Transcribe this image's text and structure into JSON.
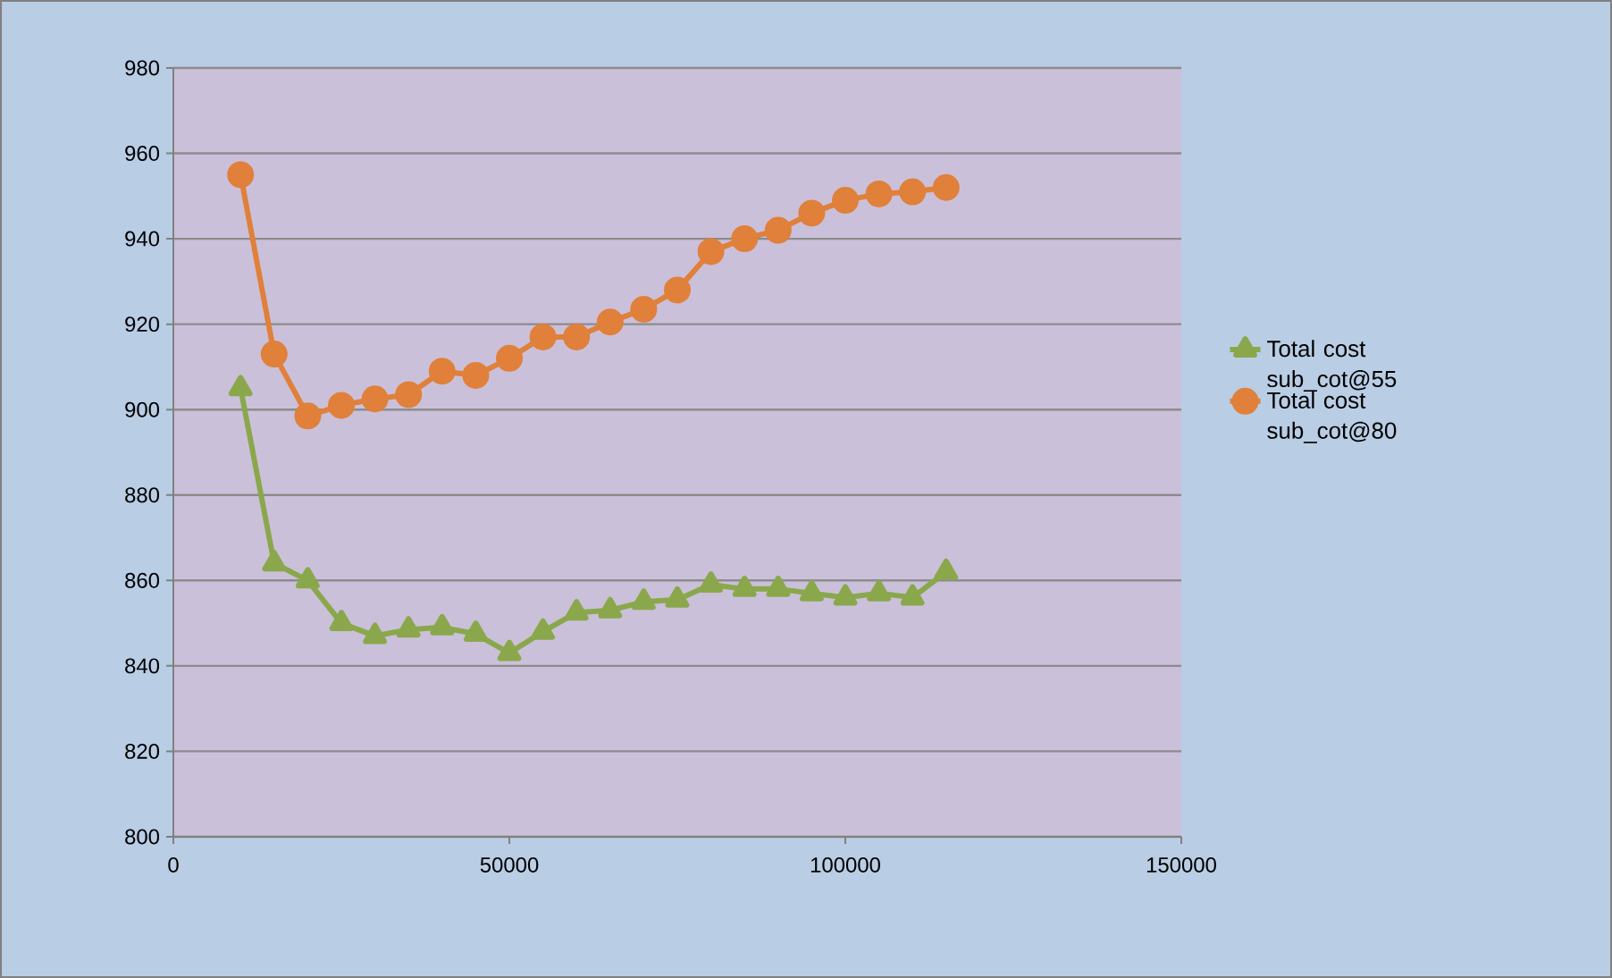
{
  "chart_data": {
    "type": "line",
    "x": [
      10000,
      15000,
      20000,
      25000,
      30000,
      35000,
      40000,
      45000,
      50000,
      55000,
      60000,
      65000,
      70000,
      75000,
      80000,
      85000,
      90000,
      95000,
      100000,
      105000,
      110000,
      115000
    ],
    "series": [
      {
        "name": "Total cost sub_cot@55",
        "color": "#8aa84b",
        "marker": "triangle",
        "values": [
          905,
          864,
          860,
          850,
          847,
          848.5,
          849,
          847.5,
          843,
          848,
          852.5,
          853,
          855,
          855.5,
          859,
          858,
          858,
          857,
          856,
          857,
          856,
          862
        ]
      },
      {
        "name": "Total cost sub_cot@80",
        "color": "#e0803a",
        "marker": "circle",
        "values": [
          955,
          913,
          898.5,
          901,
          902.5,
          903.5,
          909,
          908,
          912,
          917,
          917,
          920.5,
          923.5,
          928,
          937,
          940,
          942,
          946,
          949,
          950.5,
          951,
          952
        ]
      }
    ],
    "xlim": [
      0,
      150000
    ],
    "xticks": [
      0,
      50000,
      100000,
      150000
    ],
    "ylim": [
      800,
      980
    ],
    "yticks": [
      800,
      820,
      840,
      860,
      880,
      900,
      920,
      940,
      960,
      980
    ],
    "grid": "y",
    "legend": "right",
    "line_style": "solid"
  }
}
